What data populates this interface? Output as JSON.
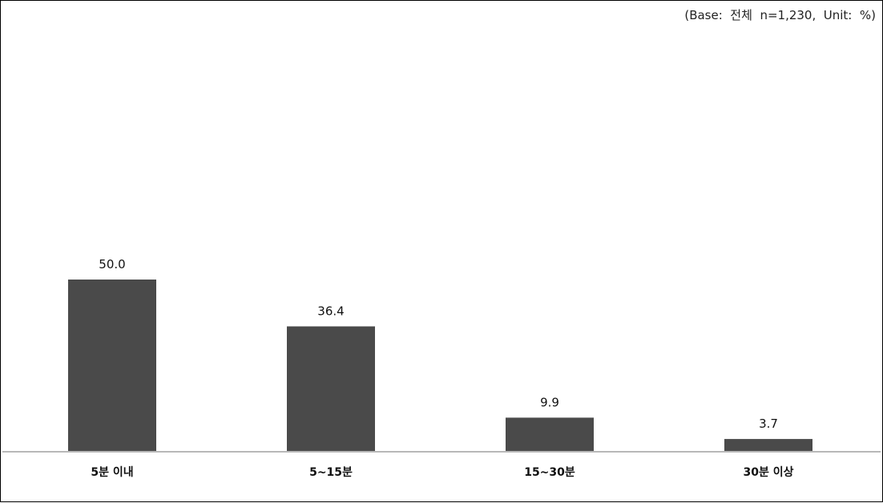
{
  "chart_data": {
    "type": "bar",
    "title": "",
    "xlabel": "",
    "ylabel": "",
    "base_note": "(Base:  전체  n=1,230,  Unit:  %)",
    "categories": [
      "5분 이내",
      "5~15분",
      "15~30분",
      "30분 이상"
    ],
    "values": [
      50.0,
      36.4,
      9.9,
      3.7
    ],
    "value_labels": [
      "50.0",
      "36.4",
      "9.9",
      "3.7"
    ],
    "ylim": [
      0,
      100
    ],
    "grid": false,
    "legend": "none",
    "colors": {
      "bar": "#4a4a4a",
      "baseline": "#b8b8b8"
    }
  }
}
